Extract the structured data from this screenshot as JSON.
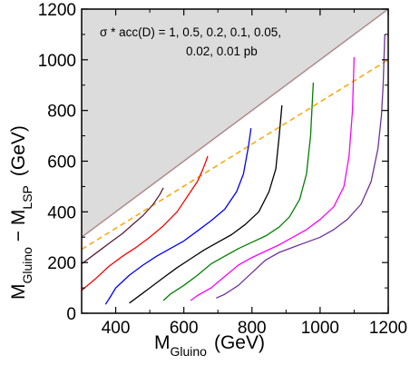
{
  "chart_data": {
    "type": "line",
    "xlabel": {
      "main": "M",
      "sub": "Gluino",
      "unit": "(GeV)"
    },
    "ylabel": {
      "m1": "M",
      "sub1": "Gluino",
      "dash": " − M",
      "sub2": "LSP",
      "unit": "(GeV)"
    },
    "xlim": [
      300,
      1200
    ],
    "ylim": [
      0,
      1200
    ],
    "xticks": [
      400,
      600,
      800,
      1000,
      1200
    ],
    "yticks": [
      0,
      200,
      400,
      600,
      800,
      1000,
      1200
    ],
    "annotation": [
      "σ * acc(D) = 1,  0.5,  0.2,  0.1,  0.05,",
      "0.02,  0.01 pb"
    ],
    "excluded_region": {
      "type": "triangle",
      "boundary": [
        [
          300,
          300
        ],
        [
          1200,
          1200
        ]
      ],
      "fill": "#dcdcdc",
      "edge_color": "#b08a8a"
    },
    "reference_line": {
      "style": "dashed",
      "color": "#ffa500",
      "x": [
        300,
        1200
      ],
      "y": [
        252,
        1000
      ]
    },
    "series": [
      {
        "color": "#5a1e3c",
        "x": [
          300,
          330,
          360,
          390,
          420,
          450,
          480,
          510,
          530,
          540
        ],
        "y": [
          195,
          225,
          255,
          285,
          315,
          350,
          385,
          430,
          470,
          495
        ]
      },
      {
        "color": "#ff0000",
        "x": [
          300,
          340,
          380,
          420,
          460,
          500,
          540,
          580,
          610,
          640,
          655,
          665,
          670
        ],
        "y": [
          90,
          135,
          185,
          225,
          260,
          300,
          345,
          400,
          460,
          520,
          565,
          600,
          620
        ]
      },
      {
        "color": "#0000ff",
        "x": [
          370,
          380,
          400,
          440,
          480,
          520,
          560,
          600,
          640,
          680,
          720,
          755,
          775,
          790,
          797
        ],
        "y": [
          35,
          55,
          100,
          150,
          190,
          225,
          255,
          285,
          325,
          365,
          410,
          480,
          550,
          660,
          730
        ]
      },
      {
        "color": "#000000",
        "x": [
          440,
          460,
          500,
          540,
          580,
          620,
          660,
          700,
          740,
          780,
          820,
          850,
          870,
          880,
          888
        ],
        "y": [
          40,
          60,
          100,
          140,
          180,
          215,
          250,
          280,
          310,
          350,
          400,
          480,
          570,
          700,
          820
        ]
      },
      {
        "color": "#008000",
        "x": [
          540,
          560,
          600,
          640,
          680,
          720,
          760,
          800,
          840,
          880,
          910,
          940,
          960,
          972,
          980
        ],
        "y": [
          50,
          75,
          110,
          150,
          195,
          225,
          255,
          280,
          305,
          340,
          380,
          450,
          550,
          700,
          910
        ]
      },
      {
        "color": "#ff00ff",
        "x": [
          620,
          640,
          680,
          720,
          760,
          800,
          840,
          880,
          920,
          960,
          1000,
          1040,
          1070,
          1085,
          1095,
          1100
        ],
        "y": [
          50,
          70,
          100,
          145,
          190,
          220,
          245,
          270,
          300,
          330,
          370,
          420,
          500,
          620,
          800,
          1010
        ]
      },
      {
        "color": "#7030a0",
        "x": [
          695,
          720,
          760,
          800,
          840,
          880,
          920,
          960,
          1000,
          1040,
          1080,
          1120,
          1150,
          1170,
          1180,
          1185,
          1190
        ],
        "y": [
          60,
          75,
          110,
          160,
          210,
          240,
          260,
          280,
          300,
          330,
          370,
          430,
          520,
          650,
          780,
          900,
          1100
        ]
      }
    ]
  }
}
